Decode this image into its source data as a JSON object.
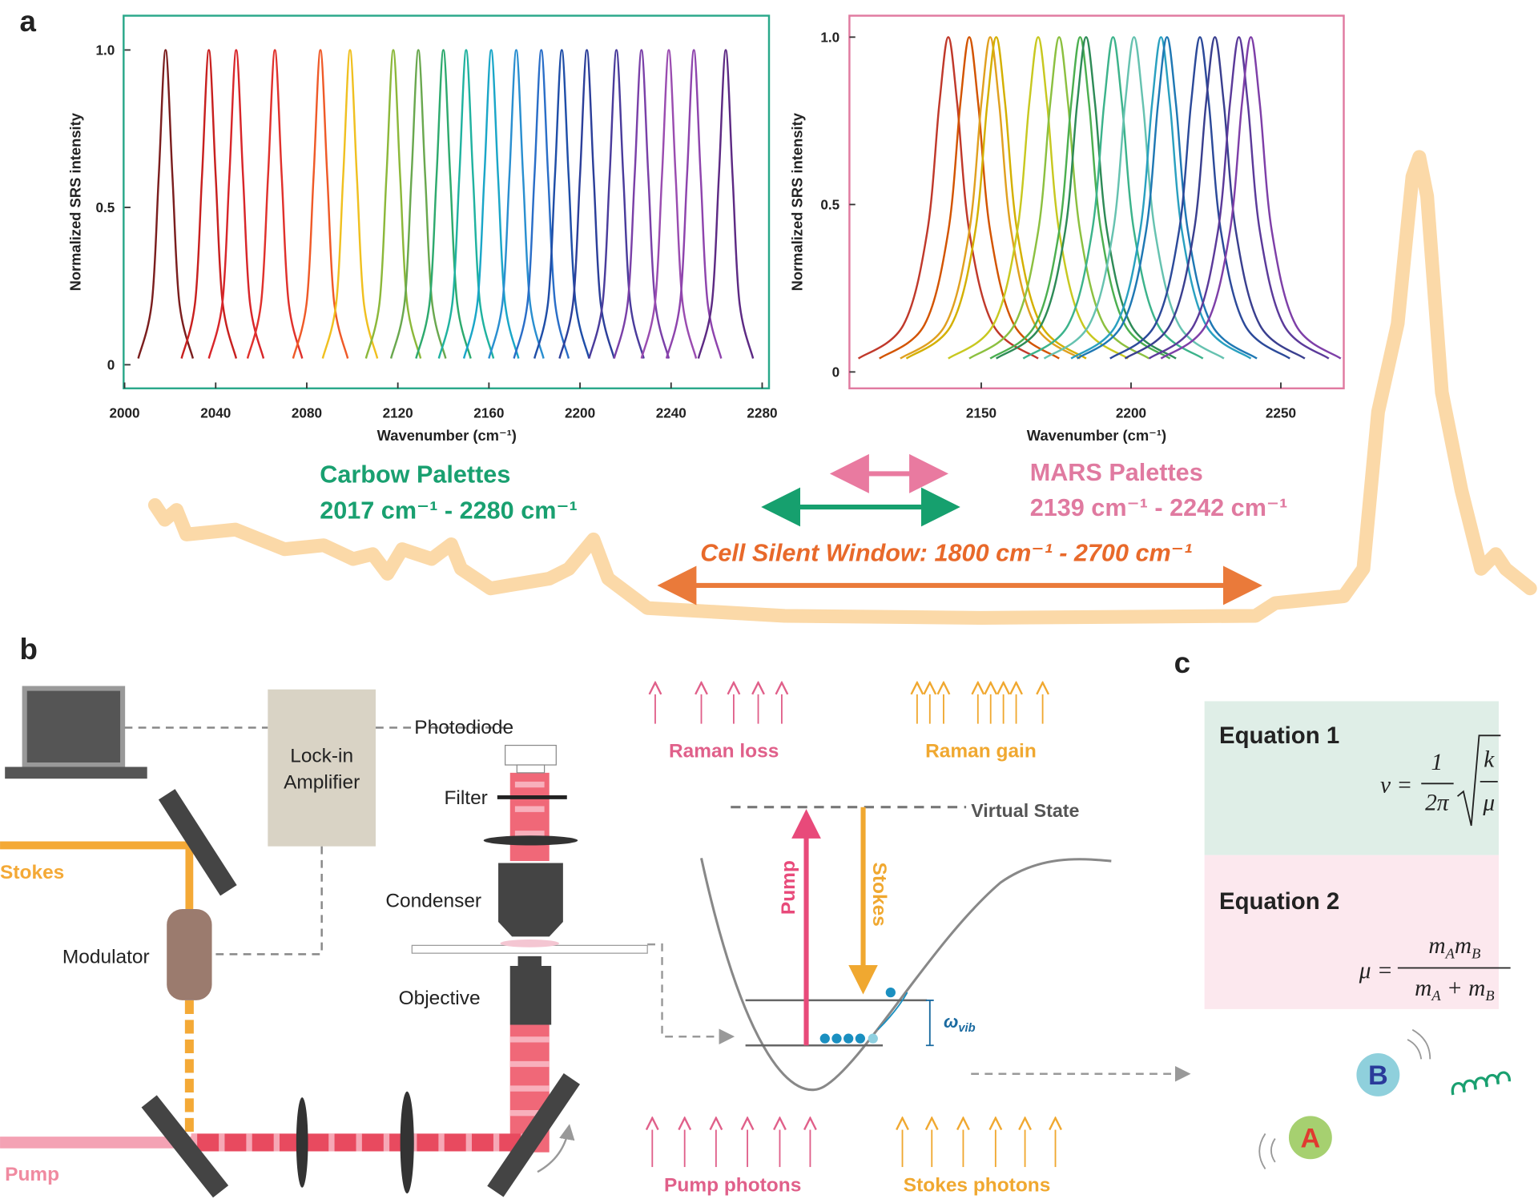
{
  "panel_labels": [
    "a",
    "b",
    "c"
  ],
  "chart_data": [
    {
      "type": "line",
      "xlabel": "Wavenumber (cm⁻¹)",
      "ylabel": "Normalized SRS intensity",
      "xlim": [
        2000,
        2283
      ],
      "ylim": [
        -0.075,
        1.109
      ],
      "xticks": [
        2000,
        2040,
        2080,
        2120,
        2160,
        2200,
        2240,
        2280
      ],
      "yticks": [
        0,
        0.5,
        {
          "value": 1,
          "label": "1.0"
        }
      ],
      "series": [
        {
          "color": "#7b1e1e",
          "x": [
            2006,
            2012,
            2015,
            2018,
            2021,
            2024,
            2030
          ],
          "values": [
            0.02,
            0.2,
            0.6,
            1,
            0.6,
            0.2,
            0.02
          ]
        },
        {
          "color": "#c8201f",
          "x": [
            2025,
            2031,
            2034,
            2037,
            2040,
            2043,
            2049
          ],
          "values": [
            0.02,
            0.2,
            0.6,
            1,
            0.6,
            0.2,
            0.02
          ]
        },
        {
          "color": "#d8262a",
          "x": [
            2037,
            2043,
            2046,
            2049,
            2052,
            2055,
            2061
          ],
          "values": [
            0.02,
            0.2,
            0.6,
            1,
            0.6,
            0.2,
            0.02
          ]
        },
        {
          "color": "#e0312c",
          "x": [
            2054,
            2060,
            2063,
            2066,
            2069,
            2072,
            2078
          ],
          "values": [
            0.02,
            0.2,
            0.6,
            1,
            0.6,
            0.2,
            0.02
          ]
        },
        {
          "color": "#ef5a28",
          "x": [
            2074,
            2080,
            2083,
            2086,
            2089,
            2092,
            2098
          ],
          "values": [
            0.02,
            0.2,
            0.6,
            1,
            0.6,
            0.2,
            0.02
          ]
        },
        {
          "color": "#f0c020",
          "x": [
            2087,
            2093,
            2096,
            2099,
            2102,
            2105,
            2111
          ],
          "values": [
            0.02,
            0.2,
            0.6,
            1,
            0.6,
            0.2,
            0.02
          ]
        },
        {
          "color": "#8cb83a",
          "x": [
            2106,
            2112,
            2115,
            2118,
            2121,
            2124,
            2130
          ],
          "values": [
            0.02,
            0.2,
            0.6,
            1,
            0.6,
            0.2,
            0.02
          ]
        },
        {
          "color": "#6aa84f",
          "x": [
            2117,
            2123,
            2126,
            2129,
            2132,
            2135,
            2141
          ],
          "values": [
            0.02,
            0.2,
            0.6,
            1,
            0.6,
            0.2,
            0.02
          ]
        },
        {
          "color": "#2eaa6e",
          "x": [
            2128,
            2134,
            2137,
            2140,
            2143,
            2146,
            2152
          ],
          "values": [
            0.02,
            0.2,
            0.6,
            1,
            0.6,
            0.2,
            0.02
          ]
        },
        {
          "color": "#20b2a0",
          "x": [
            2138,
            2144,
            2147,
            2150,
            2153,
            2156,
            2162
          ],
          "values": [
            0.02,
            0.2,
            0.6,
            1,
            0.6,
            0.2,
            0.02
          ]
        },
        {
          "color": "#1aa6c8",
          "x": [
            2149,
            2155,
            2158,
            2161,
            2164,
            2167,
            2173
          ],
          "values": [
            0.02,
            0.2,
            0.6,
            1,
            0.6,
            0.2,
            0.02
          ]
        },
        {
          "color": "#2a8fd0",
          "x": [
            2160,
            2166,
            2169,
            2172,
            2175,
            2178,
            2184
          ],
          "values": [
            0.02,
            0.2,
            0.6,
            1,
            0.6,
            0.2,
            0.02
          ]
        },
        {
          "color": "#2a6ec8",
          "x": [
            2171,
            2177,
            2180,
            2183,
            2186,
            2189,
            2195
          ],
          "values": [
            0.02,
            0.2,
            0.6,
            1,
            0.6,
            0.2,
            0.02
          ]
        },
        {
          "color": "#1f4ea8",
          "x": [
            2180,
            2186,
            2189,
            2192,
            2195,
            2198,
            2204
          ],
          "values": [
            0.02,
            0.2,
            0.6,
            1,
            0.6,
            0.2,
            0.02
          ]
        },
        {
          "color": "#2c3f9a",
          "x": [
            2191,
            2197,
            2200,
            2203,
            2206,
            2209,
            2215
          ],
          "values": [
            0.02,
            0.2,
            0.6,
            1,
            0.6,
            0.2,
            0.02
          ]
        },
        {
          "color": "#4a3c9c",
          "x": [
            2204,
            2210,
            2213,
            2216,
            2219,
            2222,
            2228
          ],
          "values": [
            0.02,
            0.2,
            0.6,
            1,
            0.6,
            0.2,
            0.02
          ]
        },
        {
          "color": "#7a40a8",
          "x": [
            2215,
            2221,
            2224,
            2227,
            2230,
            2233,
            2239
          ],
          "values": [
            0.02,
            0.2,
            0.6,
            1,
            0.6,
            0.2,
            0.02
          ]
        },
        {
          "color": "#9a4cb0",
          "x": [
            2227,
            2233,
            2236,
            2239,
            2242,
            2245,
            2251
          ],
          "values": [
            0.02,
            0.2,
            0.6,
            1,
            0.6,
            0.2,
            0.02
          ]
        },
        {
          "color": "#8e44ad",
          "x": [
            2238,
            2244,
            2247,
            2250,
            2253,
            2256,
            2262
          ],
          "values": [
            0.02,
            0.2,
            0.6,
            1,
            0.6,
            0.2,
            0.02
          ]
        },
        {
          "color": "#5d2a84",
          "x": [
            2252,
            2258,
            2261,
            2264,
            2267,
            2270,
            2276
          ],
          "values": [
            0.02,
            0.2,
            0.6,
            1,
            0.6,
            0.2,
            0.02
          ]
        }
      ]
    },
    {
      "type": "line",
      "xlabel": "Wavenumber (cm⁻¹)",
      "ylabel": "Normalized SRS intensity",
      "xlim": [
        2106,
        2271
      ],
      "ylim": [
        -0.049,
        1.064
      ],
      "xticks": [
        2150,
        2200,
        2250
      ],
      "yticks": [
        0,
        0.5,
        {
          "value": 1,
          "label": "1.0"
        }
      ],
      "series": [
        {
          "color": "#c0392b",
          "x": [
            2109,
            2124,
            2132,
            2136,
            2139,
            2142,
            2146,
            2154,
            2169
          ],
          "values": [
            0.04,
            0.14,
            0.42,
            0.8,
            1,
            0.8,
            0.42,
            0.14,
            0.04
          ]
        },
        {
          "color": "#d35400",
          "x": [
            2116,
            2131,
            2139,
            2143,
            2146,
            2149,
            2153,
            2161,
            2176
          ],
          "values": [
            0.04,
            0.14,
            0.42,
            0.8,
            1,
            0.8,
            0.42,
            0.14,
            0.04
          ]
        },
        {
          "color": "#e0a020",
          "x": [
            2123,
            2138,
            2146,
            2150,
            2153,
            2156,
            2160,
            2168,
            2183
          ],
          "values": [
            0.04,
            0.14,
            0.42,
            0.8,
            1,
            0.8,
            0.42,
            0.14,
            0.04
          ]
        },
        {
          "color": "#d4b000",
          "x": [
            2125,
            2140,
            2148,
            2152,
            2155,
            2158,
            2162,
            2170,
            2185
          ],
          "values": [
            0.04,
            0.14,
            0.42,
            0.8,
            1,
            0.8,
            0.42,
            0.14,
            0.04
          ]
        },
        {
          "color": "#c8c820",
          "x": [
            2139,
            2154,
            2162,
            2166,
            2169,
            2172,
            2176,
            2184,
            2199
          ],
          "values": [
            0.04,
            0.14,
            0.42,
            0.8,
            1,
            0.8,
            0.42,
            0.14,
            0.04
          ]
        },
        {
          "color": "#8cc040",
          "x": [
            2146,
            2161,
            2169,
            2173,
            2176,
            2179,
            2183,
            2191,
            2206
          ],
          "values": [
            0.04,
            0.14,
            0.42,
            0.8,
            1,
            0.8,
            0.42,
            0.14,
            0.04
          ]
        },
        {
          "color": "#4caf50",
          "x": [
            2153,
            2168,
            2176,
            2180,
            2183,
            2186,
            2190,
            2198,
            2213
          ],
          "values": [
            0.04,
            0.14,
            0.42,
            0.8,
            1,
            0.8,
            0.42,
            0.14,
            0.04
          ]
        },
        {
          "color": "#2e8b57",
          "x": [
            2155,
            2170,
            2178,
            2182,
            2185,
            2188,
            2192,
            2200,
            2215
          ],
          "values": [
            0.04,
            0.14,
            0.42,
            0.8,
            1,
            0.8,
            0.42,
            0.14,
            0.04
          ]
        },
        {
          "color": "#3cb38b",
          "x": [
            2164,
            2179,
            2187,
            2191,
            2194,
            2197,
            2201,
            2209,
            2224
          ],
          "values": [
            0.04,
            0.14,
            0.42,
            0.8,
            1,
            0.8,
            0.42,
            0.14,
            0.04
          ]
        },
        {
          "color": "#66c2b0",
          "x": [
            2171,
            2186,
            2194,
            2198,
            2201,
            2204,
            2208,
            2216,
            2231
          ],
          "values": [
            0.04,
            0.14,
            0.42,
            0.8,
            1,
            0.8,
            0.42,
            0.14,
            0.04
          ]
        },
        {
          "color": "#2aa0c0",
          "x": [
            2180,
            2195,
            2203,
            2207,
            2210,
            2213,
            2217,
            2225,
            2240
          ],
          "values": [
            0.04,
            0.14,
            0.42,
            0.8,
            1,
            0.8,
            0.42,
            0.14,
            0.04
          ]
        },
        {
          "color": "#1f78b4",
          "x": [
            2182,
            2197,
            2205,
            2209,
            2212,
            2215,
            2219,
            2227,
            2242
          ],
          "values": [
            0.04,
            0.14,
            0.42,
            0.8,
            1,
            0.8,
            0.42,
            0.14,
            0.04
          ]
        },
        {
          "color": "#2c4a9a",
          "x": [
            2193,
            2208,
            2216,
            2220,
            2223,
            2226,
            2230,
            2238,
            2253
          ],
          "values": [
            0.04,
            0.14,
            0.42,
            0.8,
            1,
            0.8,
            0.42,
            0.14,
            0.04
          ]
        },
        {
          "color": "#3a3f8f",
          "x": [
            2198,
            2213,
            2221,
            2225,
            2228,
            2231,
            2235,
            2243,
            2258
          ],
          "values": [
            0.04,
            0.14,
            0.42,
            0.8,
            1,
            0.8,
            0.42,
            0.14,
            0.04
          ]
        },
        {
          "color": "#5b3a9a",
          "x": [
            2206,
            2221,
            2229,
            2233,
            2236,
            2239,
            2243,
            2251,
            2266
          ],
          "values": [
            0.04,
            0.14,
            0.42,
            0.8,
            1,
            0.8,
            0.42,
            0.14,
            0.04
          ]
        },
        {
          "color": "#7e3fa8",
          "x": [
            2210,
            2225,
            2233,
            2237,
            2240,
            2243,
            2247,
            2255,
            2270
          ],
          "values": [
            0.04,
            0.14,
            0.42,
            0.8,
            1,
            0.8,
            0.42,
            0.14,
            0.04
          ]
        }
      ]
    }
  ],
  "annotations": {
    "carbow_title": "Carbow Palettes",
    "carbow_range": "2017 cm⁻¹ - 2280 cm⁻¹",
    "mars_title": "MARS Palettes",
    "mars_range": "2139 cm⁻¹ - 2242 cm⁻¹",
    "silent_window": "Cell Silent Window: 1800 cm⁻¹ - 2700 cm⁻¹"
  },
  "diagram": {
    "lockin": [
      "Lock-in",
      "Amplifier"
    ],
    "photodiode": "Photodiode",
    "filter": "Filter",
    "condenser": "Condenser",
    "objective": "Objective",
    "modulator": "Modulator",
    "stokes": "Stokes",
    "pump": "Pump",
    "raman_loss": "Raman loss",
    "raman_gain": "Raman gain",
    "virtual_state": "Virtual State",
    "pump_arrow": "Pump",
    "stokes_arrow": "Stokes",
    "omega": "ω",
    "omega_sub": "vib",
    "pump_photons": "Pump photons",
    "stokes_photons": "Stokes photons"
  },
  "equations": [
    {
      "title": "Equation 1",
      "lhs": "ν =",
      "frac_num": "1",
      "frac_den": "2π",
      "root_num": "k",
      "root_den": "μ"
    },
    {
      "title": "Equation 2",
      "lhs": "μ =",
      "num": [
        "m",
        "A",
        "m",
        "B"
      ],
      "den": [
        "m",
        "A",
        " + m",
        "B"
      ]
    }
  ],
  "molecule": {
    "atoms": [
      "A",
      "B"
    ]
  }
}
